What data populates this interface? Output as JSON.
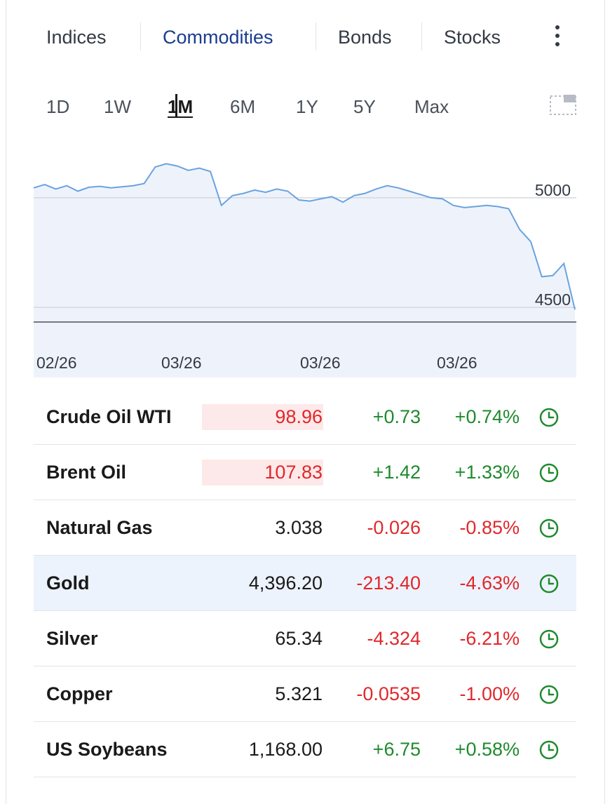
{
  "tabs": [
    "Indices",
    "Commodities",
    "Bonds",
    "Stocks"
  ],
  "active_tab": "Commodities",
  "more_icon": "more-vertical-icon",
  "periods": [
    "1D",
    "1W",
    "1M",
    "6M",
    "1Y",
    "5Y",
    "Max"
  ],
  "active_period": "1M",
  "expand_icon": "expand-icon",
  "chart_data": {
    "type": "area",
    "x_tick_labels": [
      "02/26",
      "03/26",
      "03/26",
      "03/26"
    ],
    "y_tick_labels": [
      "5000",
      "4500"
    ],
    "ylim": [
      4430,
      5230
    ],
    "x": [
      0,
      1,
      2,
      3,
      4,
      5,
      6,
      7,
      8,
      9,
      10,
      11,
      12,
      13,
      14,
      15,
      16,
      17,
      18,
      19,
      20,
      21,
      22,
      23,
      24,
      25,
      26,
      27,
      28,
      29,
      30,
      31,
      32,
      33,
      34,
      35,
      36,
      37,
      38,
      39,
      40,
      41,
      42,
      43,
      44,
      45,
      46,
      47,
      48,
      49
    ],
    "values": [
      5045,
      5060,
      5040,
      5055,
      5030,
      5048,
      5052,
      5045,
      5050,
      5055,
      5065,
      5140,
      5155,
      5145,
      5125,
      5135,
      5120,
      4965,
      5010,
      5020,
      5035,
      5025,
      5040,
      5030,
      4990,
      4985,
      4995,
      5005,
      4980,
      5010,
      5020,
      5040,
      5055,
      5045,
      5030,
      5015,
      5000,
      4995,
      4965,
      4955,
      4960,
      4965,
      4960,
      4950,
      4855,
      4800,
      4640,
      4645,
      4700,
      4490
    ],
    "grid": true,
    "colors": {
      "line": "#6aa3e0",
      "fill": "#eef3fb",
      "grid": "#d4d8de",
      "baseline": "#4a505a"
    }
  },
  "quotes": [
    {
      "name": "Crude Oil WTI",
      "last": "98.96",
      "chg": "+0.73",
      "chg_pct": "+0.74%",
      "dir": "up",
      "flash": true,
      "highlight": false,
      "icon": "clock-icon"
    },
    {
      "name": "Brent Oil",
      "last": "107.83",
      "chg": "+1.42",
      "chg_pct": "+1.33%",
      "dir": "up",
      "flash": true,
      "highlight": false,
      "icon": "clock-icon"
    },
    {
      "name": "Natural Gas",
      "last": "3.038",
      "chg": "-0.026",
      "chg_pct": "-0.85%",
      "dir": "down",
      "flash": false,
      "highlight": false,
      "icon": "clock-icon"
    },
    {
      "name": "Gold",
      "last": "4,396.20",
      "chg": "-213.40",
      "chg_pct": "-4.63%",
      "dir": "down",
      "flash": false,
      "highlight": true,
      "icon": "clock-icon"
    },
    {
      "name": "Silver",
      "last": "65.34",
      "chg": "-4.324",
      "chg_pct": "-6.21%",
      "dir": "down",
      "flash": false,
      "highlight": false,
      "icon": "clock-icon"
    },
    {
      "name": "Copper",
      "last": "5.321",
      "chg": "-0.0535",
      "chg_pct": "-1.00%",
      "dir": "down",
      "flash": false,
      "highlight": false,
      "icon": "clock-icon"
    },
    {
      "name": "US Soybeans",
      "last": "1,168.00",
      "chg": "+6.75",
      "chg_pct": "+0.58%",
      "dir": "up",
      "flash": false,
      "highlight": false,
      "icon": "clock-icon"
    }
  ],
  "colors": {
    "accent": "#1a3d8f",
    "up": "#1f8a2e",
    "down": "#e0282b",
    "row_highlight": "#edf3fc",
    "flash_bg": "#fde9e9",
    "clock_green": "#1f8a2e"
  }
}
